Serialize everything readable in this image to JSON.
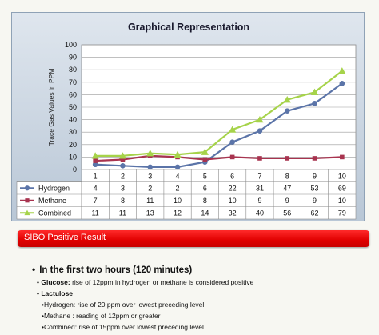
{
  "chart_data": {
    "type": "line",
    "title": "Graphical Representation",
    "ylabel": "Trace Gas Values in PPM",
    "xlabel": "",
    "categories": [
      "1",
      "2",
      "3",
      "4",
      "5",
      "6",
      "7",
      "8",
      "9",
      "10"
    ],
    "ylim": [
      0,
      100
    ],
    "yticks": [
      "0",
      "10",
      "20",
      "30",
      "40",
      "50",
      "60",
      "70",
      "80",
      "90",
      "100"
    ],
    "grid": true,
    "legend": "table-below",
    "series": [
      {
        "name": "Hydrogen",
        "values": [
          4,
          3,
          2,
          2,
          6,
          22,
          31,
          47,
          53,
          69
        ],
        "color": "#5b74a8",
        "marker": "circle"
      },
      {
        "name": "Methane",
        "values": [
          7,
          8,
          11,
          10,
          8,
          10,
          9,
          9,
          9,
          10
        ],
        "color": "#a8334f",
        "marker": "square"
      },
      {
        "name": "Combined",
        "values": [
          11,
          11,
          13,
          12,
          14,
          32,
          40,
          56,
          62,
          79
        ],
        "color": "#a6d34a",
        "marker": "triangle"
      }
    ]
  },
  "banner": {
    "text": "SIBO Positive Result",
    "color": "#e00000"
  },
  "notes": {
    "heading": "In the first two hours (120 minutes)",
    "glucose_label": "Glucose:",
    "glucose_text": " rise of 12ppm in hydrogen or methane is considered positive",
    "lactulose_title": "Lactulose",
    "lines": [
      "•Hydrogen: rise of 20 ppm over lowest preceding level",
      "•Methane :  reading of 12ppm or greater",
      "•Combined: rise of 15ppm over lowest preceding level"
    ]
  }
}
